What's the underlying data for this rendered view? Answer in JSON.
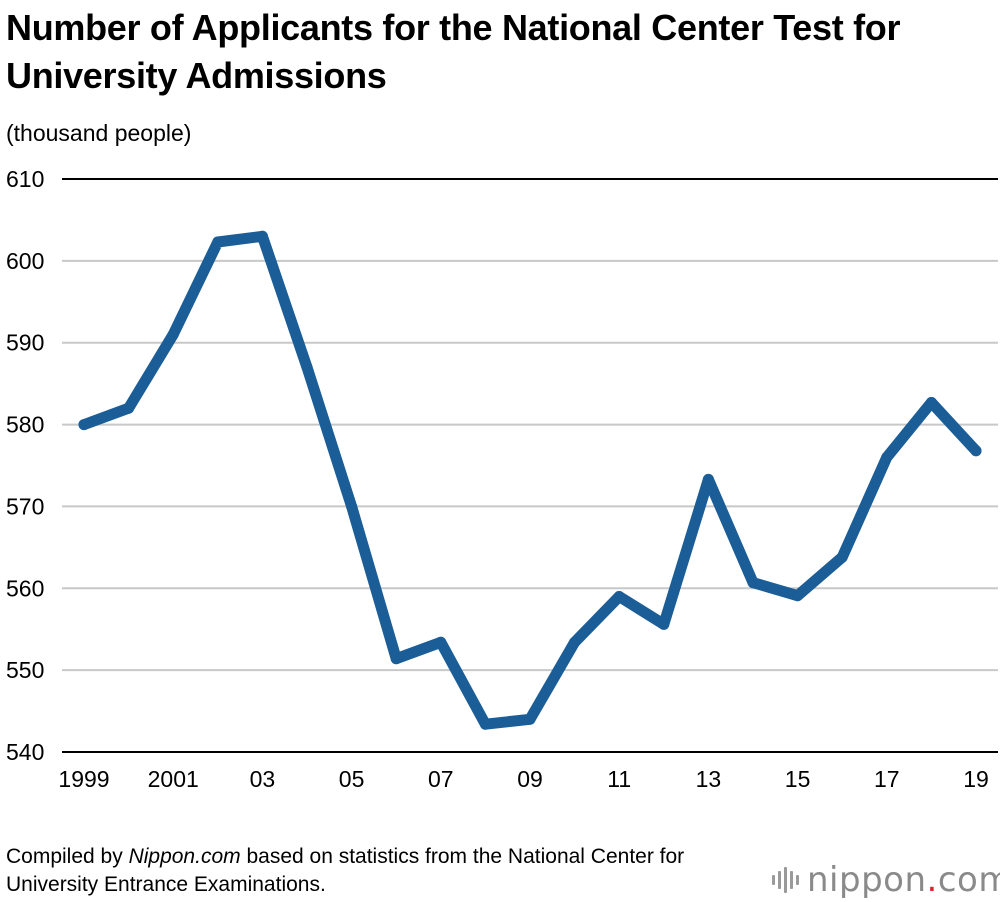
{
  "title": "Number of Applicants for the National Center Test for University Admissions",
  "unit_label": "(thousand people)",
  "footer": {
    "prefix": "Compiled by ",
    "source_name": "Nippon.com",
    "suffix": " based on statistics from the National Center for University Entrance Examinations."
  },
  "brand": {
    "name_part1": "nippon",
    "dot": ".",
    "name_part2": "com"
  },
  "colors": {
    "line": "#1b5d97",
    "grid": "#c8c8c8",
    "axis": "#000000",
    "brand_dot": "#d7282f"
  },
  "chart_data": {
    "type": "line",
    "title": "Number of Applicants for the National Center Test for University Admissions",
    "ylabel": "(thousand people)",
    "xlabel": "",
    "ylim": [
      540,
      610
    ],
    "yticks": [
      540,
      550,
      560,
      570,
      580,
      590,
      600,
      610
    ],
    "grid": true,
    "x": [
      1999,
      2000,
      2001,
      2002,
      2003,
      2004,
      2005,
      2006,
      2007,
      2008,
      2009,
      2010,
      2011,
      2012,
      2013,
      2014,
      2015,
      2016,
      2017,
      2018,
      2019
    ],
    "xtick_values": [
      1999,
      2001,
      2003,
      2005,
      2007,
      2009,
      2011,
      2013,
      2015,
      2017,
      2019
    ],
    "xtick_labels": [
      "1999",
      "2001",
      "03",
      "05",
      "07",
      "09",
      "11",
      "13",
      "15",
      "17",
      "19"
    ],
    "series": [
      {
        "values": [
          580.0,
          582.0,
          591.0,
          602.3,
          603.0,
          587.0,
          570.0,
          551.4,
          553.4,
          543.4,
          544.0,
          553.4,
          559.0,
          555.6,
          573.3,
          560.7,
          559.1,
          563.8,
          576.0,
          582.7,
          576.8
        ]
      }
    ]
  }
}
